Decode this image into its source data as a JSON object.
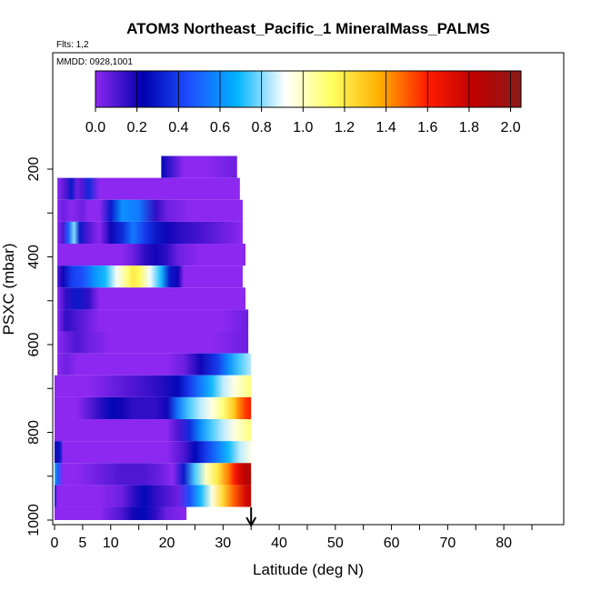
{
  "chart_data": {
    "type": "heatmap",
    "title": "ATOM3 Northeast_Pacific_1 MineralMass_PALMS",
    "flights_note": "Flts: 1,2",
    "date_note": "MMDD: 0928,1001",
    "xlabel": "Latitude (deg N)",
    "ylabel": "PSXC (mbar)",
    "xlim": [
      0,
      85
    ],
    "ylim": [
      1000,
      100
    ],
    "x_ticks": [
      0,
      5,
      10,
      20,
      30,
      40,
      50,
      60,
      70,
      80
    ],
    "y_ticks": [
      200,
      400,
      600,
      800,
      1000
    ],
    "colorbar": {
      "range": [
        0.0,
        2.05
      ],
      "ticks": [
        "0.0",
        "0.2",
        "0.4",
        "0.6",
        "0.8",
        "1.0",
        "1.2",
        "1.4",
        "1.6",
        "1.8",
        "2.0"
      ],
      "colors": [
        "#8c28f0",
        "#0000b0",
        "#1e50ff",
        "#00b4ff",
        "#ffffff",
        "#ffff60",
        "#ffb000",
        "#ff1e00",
        "#c00000",
        "#8b1a1a"
      ]
    },
    "marker": {
      "latitude": 35,
      "style": "arrow"
    },
    "bands": [
      {
        "p_top": 170,
        "p_bot": 220,
        "x": [
          19,
          23,
          27,
          32.5
        ],
        "v": [
          0.25,
          0.0,
          0.0,
          0.05
        ]
      },
      {
        "p_top": 220,
        "p_bot": 270,
        "x": [
          0.5,
          2,
          3,
          4,
          5,
          6,
          8,
          10,
          15,
          20,
          26,
          33
        ],
        "v": [
          0.0,
          0.1,
          0.3,
          0.05,
          0.1,
          0.35,
          0.0,
          0.0,
          0.0,
          0.0,
          0.0,
          0.0
        ]
      },
      {
        "p_top": 270,
        "p_bot": 320,
        "x": [
          0.5,
          1.5,
          3,
          5,
          6,
          8,
          10,
          12,
          15,
          18,
          20,
          24,
          30,
          33.5
        ],
        "v": [
          0.0,
          0.05,
          0.0,
          0.05,
          0.0,
          0.0,
          0.3,
          0.6,
          0.55,
          0.15,
          0.05,
          0.0,
          0.0,
          0.0
        ]
      },
      {
        "p_top": 320,
        "p_bot": 370,
        "x": [
          0.5,
          1.5,
          2.5,
          3.5,
          4.5,
          6,
          8,
          10,
          12,
          14,
          16,
          18,
          20,
          23,
          27,
          33.5
        ],
        "v": [
          0.0,
          0.1,
          0.5,
          0.8,
          0.3,
          0.1,
          0.0,
          0.2,
          0.35,
          0.55,
          0.4,
          0.3,
          0.2,
          0.15,
          0.1,
          0.0
        ]
      },
      {
        "p_top": 370,
        "p_bot": 420,
        "x": [
          0.5,
          4,
          8,
          12,
          14,
          16,
          18,
          20,
          22,
          26,
          34
        ],
        "v": [
          0.0,
          0.0,
          0.0,
          0.0,
          0.05,
          0.15,
          0.2,
          0.15,
          0.05,
          0.0,
          0.0
        ]
      },
      {
        "p_top": 420,
        "p_bot": 470,
        "x": [
          0.5,
          1.5,
          3,
          5,
          7,
          9,
          11,
          13,
          14,
          15,
          17,
          19,
          20.5,
          22,
          23,
          25,
          27,
          30,
          33.5
        ],
        "v": [
          0.1,
          0.2,
          0.4,
          0.45,
          0.6,
          0.7,
          0.9,
          1.1,
          1.2,
          1.15,
          0.9,
          0.7,
          0.3,
          0.2,
          0.0,
          0.0,
          0.0,
          0.0,
          0.0
        ]
      },
      {
        "p_top": 470,
        "p_bot": 520,
        "x": [
          0.5,
          2,
          4,
          6,
          8,
          10,
          12,
          14,
          16,
          18,
          20,
          22,
          24,
          28,
          34
        ],
        "v": [
          0.0,
          0.15,
          0.3,
          0.15,
          0.0,
          0.0,
          0.0,
          0.0,
          0.0,
          0.0,
          0.0,
          0.0,
          0.0,
          0.0,
          0.0
        ]
      },
      {
        "p_top": 520,
        "p_bot": 570,
        "x": [
          0.5,
          2,
          4,
          6,
          8,
          10,
          20,
          30,
          34.5
        ],
        "v": [
          0.0,
          0.15,
          0.1,
          0.05,
          0.0,
          0.0,
          0.0,
          0.0,
          0.05
        ]
      },
      {
        "p_top": 570,
        "p_bot": 620,
        "x": [
          0.5,
          2,
          4,
          6,
          10,
          20,
          28,
          34.5
        ],
        "v": [
          0.0,
          0.05,
          0.1,
          0.05,
          0.0,
          0.0,
          0.0,
          0.05
        ]
      },
      {
        "p_top": 620,
        "p_bot": 670,
        "x": [
          0.5,
          2,
          4,
          10,
          20,
          23,
          26,
          29,
          31,
          33,
          35
        ],
        "v": [
          0.0,
          0.05,
          0.0,
          0.0,
          0.0,
          0.05,
          0.2,
          0.4,
          0.6,
          0.75,
          0.85
        ]
      },
      {
        "p_top": 670,
        "p_bot": 720,
        "x": [
          0,
          2,
          6,
          10,
          14,
          18,
          22,
          24,
          26,
          28,
          30,
          32,
          34,
          35
        ],
        "v": [
          0.0,
          0.0,
          0.0,
          0.05,
          0.1,
          0.15,
          0.25,
          0.4,
          0.55,
          0.7,
          0.85,
          0.95,
          1.05,
          1.1
        ]
      },
      {
        "p_top": 720,
        "p_bot": 770,
        "x": [
          0,
          4,
          8,
          10,
          12,
          14,
          16,
          18,
          20,
          22,
          24,
          26,
          28,
          30,
          32,
          33,
          34,
          35
        ],
        "v": [
          0.0,
          0.0,
          0.15,
          0.25,
          0.2,
          0.15,
          0.15,
          0.15,
          0.2,
          0.55,
          0.75,
          0.85,
          0.95,
          1.1,
          1.3,
          1.45,
          1.55,
          1.6
        ]
      },
      {
        "p_top": 770,
        "p_bot": 820,
        "x": [
          0,
          4,
          8,
          12,
          16,
          20,
          22,
          24,
          26,
          28,
          30,
          32,
          34,
          35
        ],
        "v": [
          0.0,
          0.0,
          0.0,
          0.0,
          0.0,
          0.0,
          0.1,
          0.35,
          0.6,
          0.75,
          0.85,
          0.95,
          1.05,
          1.1
        ]
      },
      {
        "p_top": 820,
        "p_bot": 870,
        "x": [
          0,
          1,
          1.5,
          4,
          10,
          20,
          23,
          25,
          27,
          29,
          31,
          33,
          35
        ],
        "v": [
          0.2,
          0.3,
          0.0,
          0.0,
          0.0,
          0.0,
          0.1,
          0.25,
          0.4,
          0.55,
          0.7,
          0.85,
          0.95
        ]
      },
      {
        "p_top": 870,
        "p_bot": 920,
        "x": [
          0,
          0.5,
          1.5,
          4,
          8,
          12,
          16,
          19,
          21,
          23,
          25,
          27,
          29,
          31,
          32,
          33,
          34,
          35
        ],
        "v": [
          0.7,
          0.5,
          0.0,
          0.0,
          0.05,
          0.1,
          0.1,
          0.05,
          0.0,
          0.3,
          0.75,
          1.0,
          1.2,
          1.45,
          1.6,
          1.75,
          1.85,
          1.9
        ]
      },
      {
        "p_top": 920,
        "p_bot": 970,
        "x": [
          0,
          0.5,
          1,
          4,
          8,
          12,
          14,
          16,
          18,
          20,
          22,
          24,
          26,
          28,
          30,
          32,
          34,
          35
        ],
        "v": [
          0.3,
          0.0,
          0.0,
          0.0,
          0.0,
          0.05,
          0.15,
          0.25,
          0.15,
          0.1,
          0.05,
          0.45,
          0.7,
          0.95,
          1.25,
          1.5,
          1.75,
          1.85
        ]
      },
      {
        "p_top": 970,
        "p_bot": 1000,
        "x": [
          0,
          4,
          8,
          12,
          14,
          16,
          18,
          20,
          23.5
        ],
        "v": [
          0.0,
          0.0,
          0.0,
          0.1,
          0.2,
          0.25,
          0.15,
          0.05,
          0.0
        ]
      }
    ]
  }
}
